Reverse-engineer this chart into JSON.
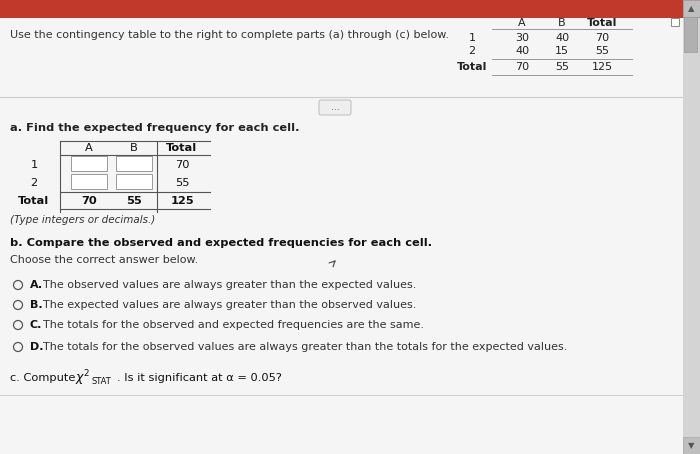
{
  "page_bg": "#f5f5f5",
  "red_bar_color": "#c0392b",
  "top_instruction": "Use the contingency table to the right to complete parts (a) through (c) below.",
  "top_table": {
    "headers": [
      "",
      "A",
      "B",
      "Total"
    ],
    "rows": [
      [
        "1",
        "30",
        "40",
        "70"
      ],
      [
        "2",
        "40",
        "15",
        "55"
      ],
      [
        "Total",
        "70",
        "55",
        "125"
      ]
    ]
  },
  "section_a_label": "a. Find the expected frequency for each cell.",
  "bottom_table": {
    "headers": [
      "",
      "A",
      "B",
      "Total"
    ],
    "rows": [
      [
        "1",
        "",
        "",
        "70"
      ],
      [
        "2",
        "",
        "",
        "55"
      ],
      [
        "Total",
        "70",
        "55",
        "125"
      ]
    ]
  },
  "note": "(Type integers or decimals.)",
  "section_b_label": "b. Compare the observed and expected frequencies for each cell.",
  "choose_label": "Choose the correct answer below.",
  "options": [
    [
      "A.",
      "The observed values are always greater than the expected values."
    ],
    [
      "B.",
      "The expected values are always greater than the observed values."
    ],
    [
      "C.",
      "The totals for the observed and expected frequencies are the same."
    ],
    [
      "D.",
      "The totals for the observed values are always greater than the totals for the expected values."
    ]
  ],
  "ellipsis_text": "..."
}
